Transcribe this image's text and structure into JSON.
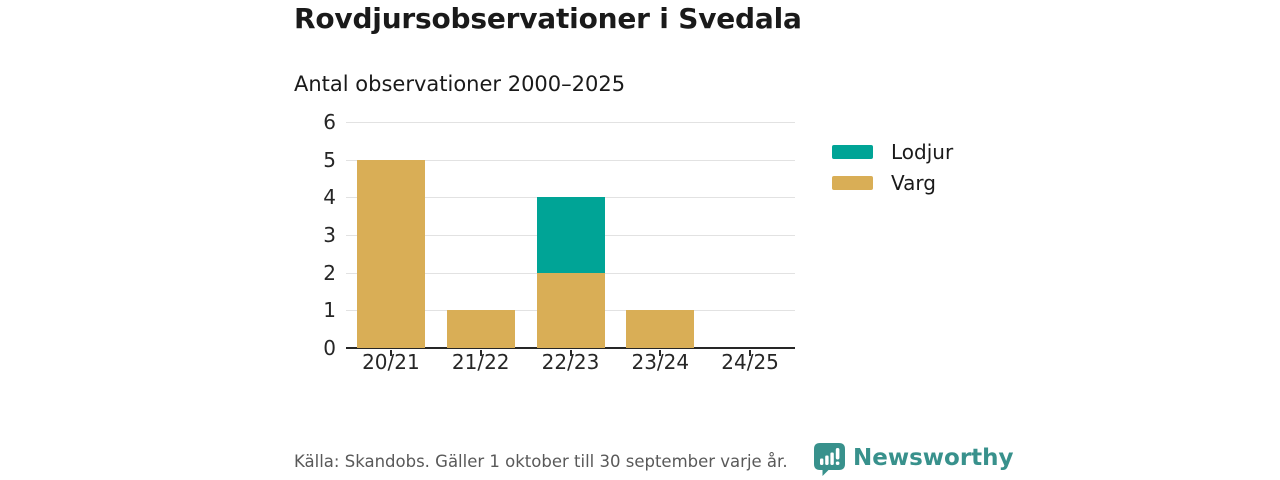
{
  "header": {
    "title": "Rovdjursobservationer i Svedala",
    "subtitle": "Antal observationer 2000–2025"
  },
  "chart_data": {
    "type": "bar",
    "stacked": true,
    "title": "Rovdjursobservationer i Svedala",
    "subtitle": "Antal observationer 2000–2025",
    "categories": [
      "20/21",
      "21/22",
      "22/23",
      "23/24",
      "24/25"
    ],
    "series": [
      {
        "name": "Lodjur",
        "color": "#00a496",
        "values": [
          0,
          0,
          2,
          0,
          0
        ]
      },
      {
        "name": "Varg",
        "color": "#d9ae56",
        "values": [
          5,
          1,
          2,
          1,
          0
        ]
      }
    ],
    "totals": [
      5,
      1,
      4,
      1,
      0
    ],
    "xlabel": "",
    "ylabel": "",
    "ylim": [
      0,
      6
    ],
    "yticks": [
      0,
      1,
      2,
      3,
      4,
      5,
      6
    ],
    "grid": true,
    "legend_position": "right"
  },
  "legend": {
    "items": [
      {
        "label": "Lodjur",
        "color": "#00a496"
      },
      {
        "label": "Varg",
        "color": "#d9ae56"
      }
    ]
  },
  "footer": {
    "source": "Källa: Skandobs. Gäller 1 oktober till 30 september varje år.",
    "brand": "Newsworthy"
  },
  "colors": {
    "lodjur": "#00a496",
    "varg": "#d9ae56",
    "axis": "#262626",
    "gridline": "#e2e2e2",
    "text": "#1a1a1a",
    "muted": "#595959",
    "brand_teal": "#38918c"
  }
}
